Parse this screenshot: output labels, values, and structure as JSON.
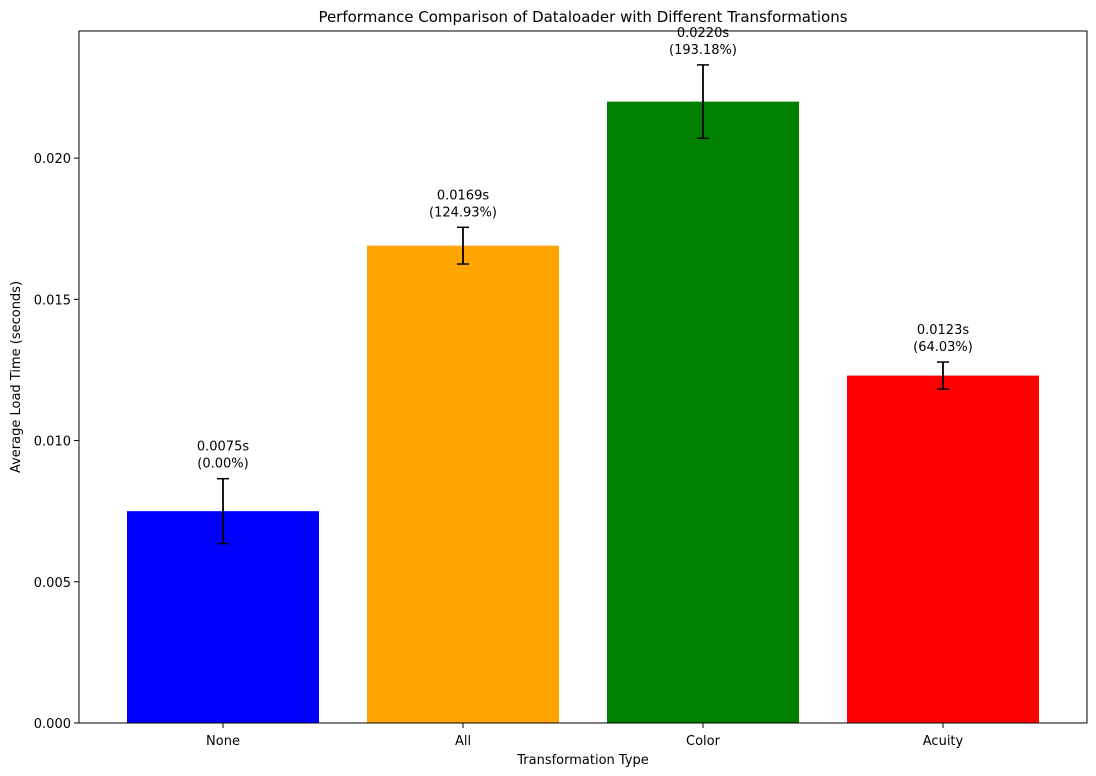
{
  "chart_data": {
    "type": "bar",
    "title": "Performance Comparison of Dataloader with Different Transformations",
    "xlabel": "Transformation Type",
    "ylabel": "Average Load Time (seconds)",
    "categories": [
      "None",
      "All",
      "Color",
      "Acuity"
    ],
    "values": [
      0.0075,
      0.0169,
      0.022,
      0.0123
    ],
    "errors": [
      0.00115,
      0.00065,
      0.0013,
      0.00048
    ],
    "colors": [
      "#0000ff",
      "#ffa500",
      "#008000",
      "#ff0000"
    ],
    "value_labels": [
      "0.0075s",
      "0.0169s",
      "0.0220s",
      "0.0123s"
    ],
    "percent_labels": [
      "(0.00%)",
      "(124.93%)",
      "(193.18%)",
      "(64.03%)"
    ],
    "yticks": [
      0.0,
      0.005,
      0.01,
      0.015,
      0.02
    ],
    "ytick_labels": [
      "0.000",
      "0.005",
      "0.010",
      "0.015",
      "0.020"
    ],
    "ylim": [
      0,
      0.0245
    ],
    "grid": false,
    "legend": "none"
  }
}
